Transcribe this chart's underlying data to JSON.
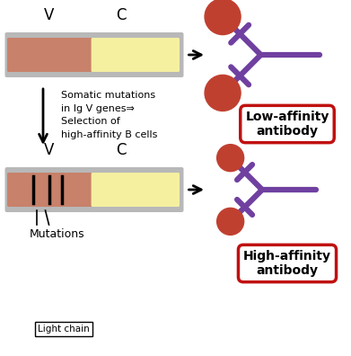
{
  "bg_color": "#ffffff",
  "v_region_color": "#c8816a",
  "c_region_color": "#f5f0a0",
  "border_color": "#b8b8b8",
  "mutation_line_color": "#000000",
  "antibody_color": "#7040a0",
  "antigen_color": "#c04030",
  "label_low_affinity": "Low-affinity\nantibody",
  "label_high_affinity": "High-affinity\nantibody",
  "label_v_top": "V",
  "label_c_top": "C",
  "label_v_bottom": "V",
  "label_c_bottom": "C",
  "text_somatic": "Somatic mutations\nin Ig V genes⇒\nSelection of\nhigh-affinity B cells",
  "text_mutations": "Mutations",
  "box_border_color": "#c01010",
  "lw_antibody": 4.5,
  "lw_gene_border": 8.0,
  "fig_w": 3.91,
  "fig_h": 3.96,
  "dpi": 100
}
